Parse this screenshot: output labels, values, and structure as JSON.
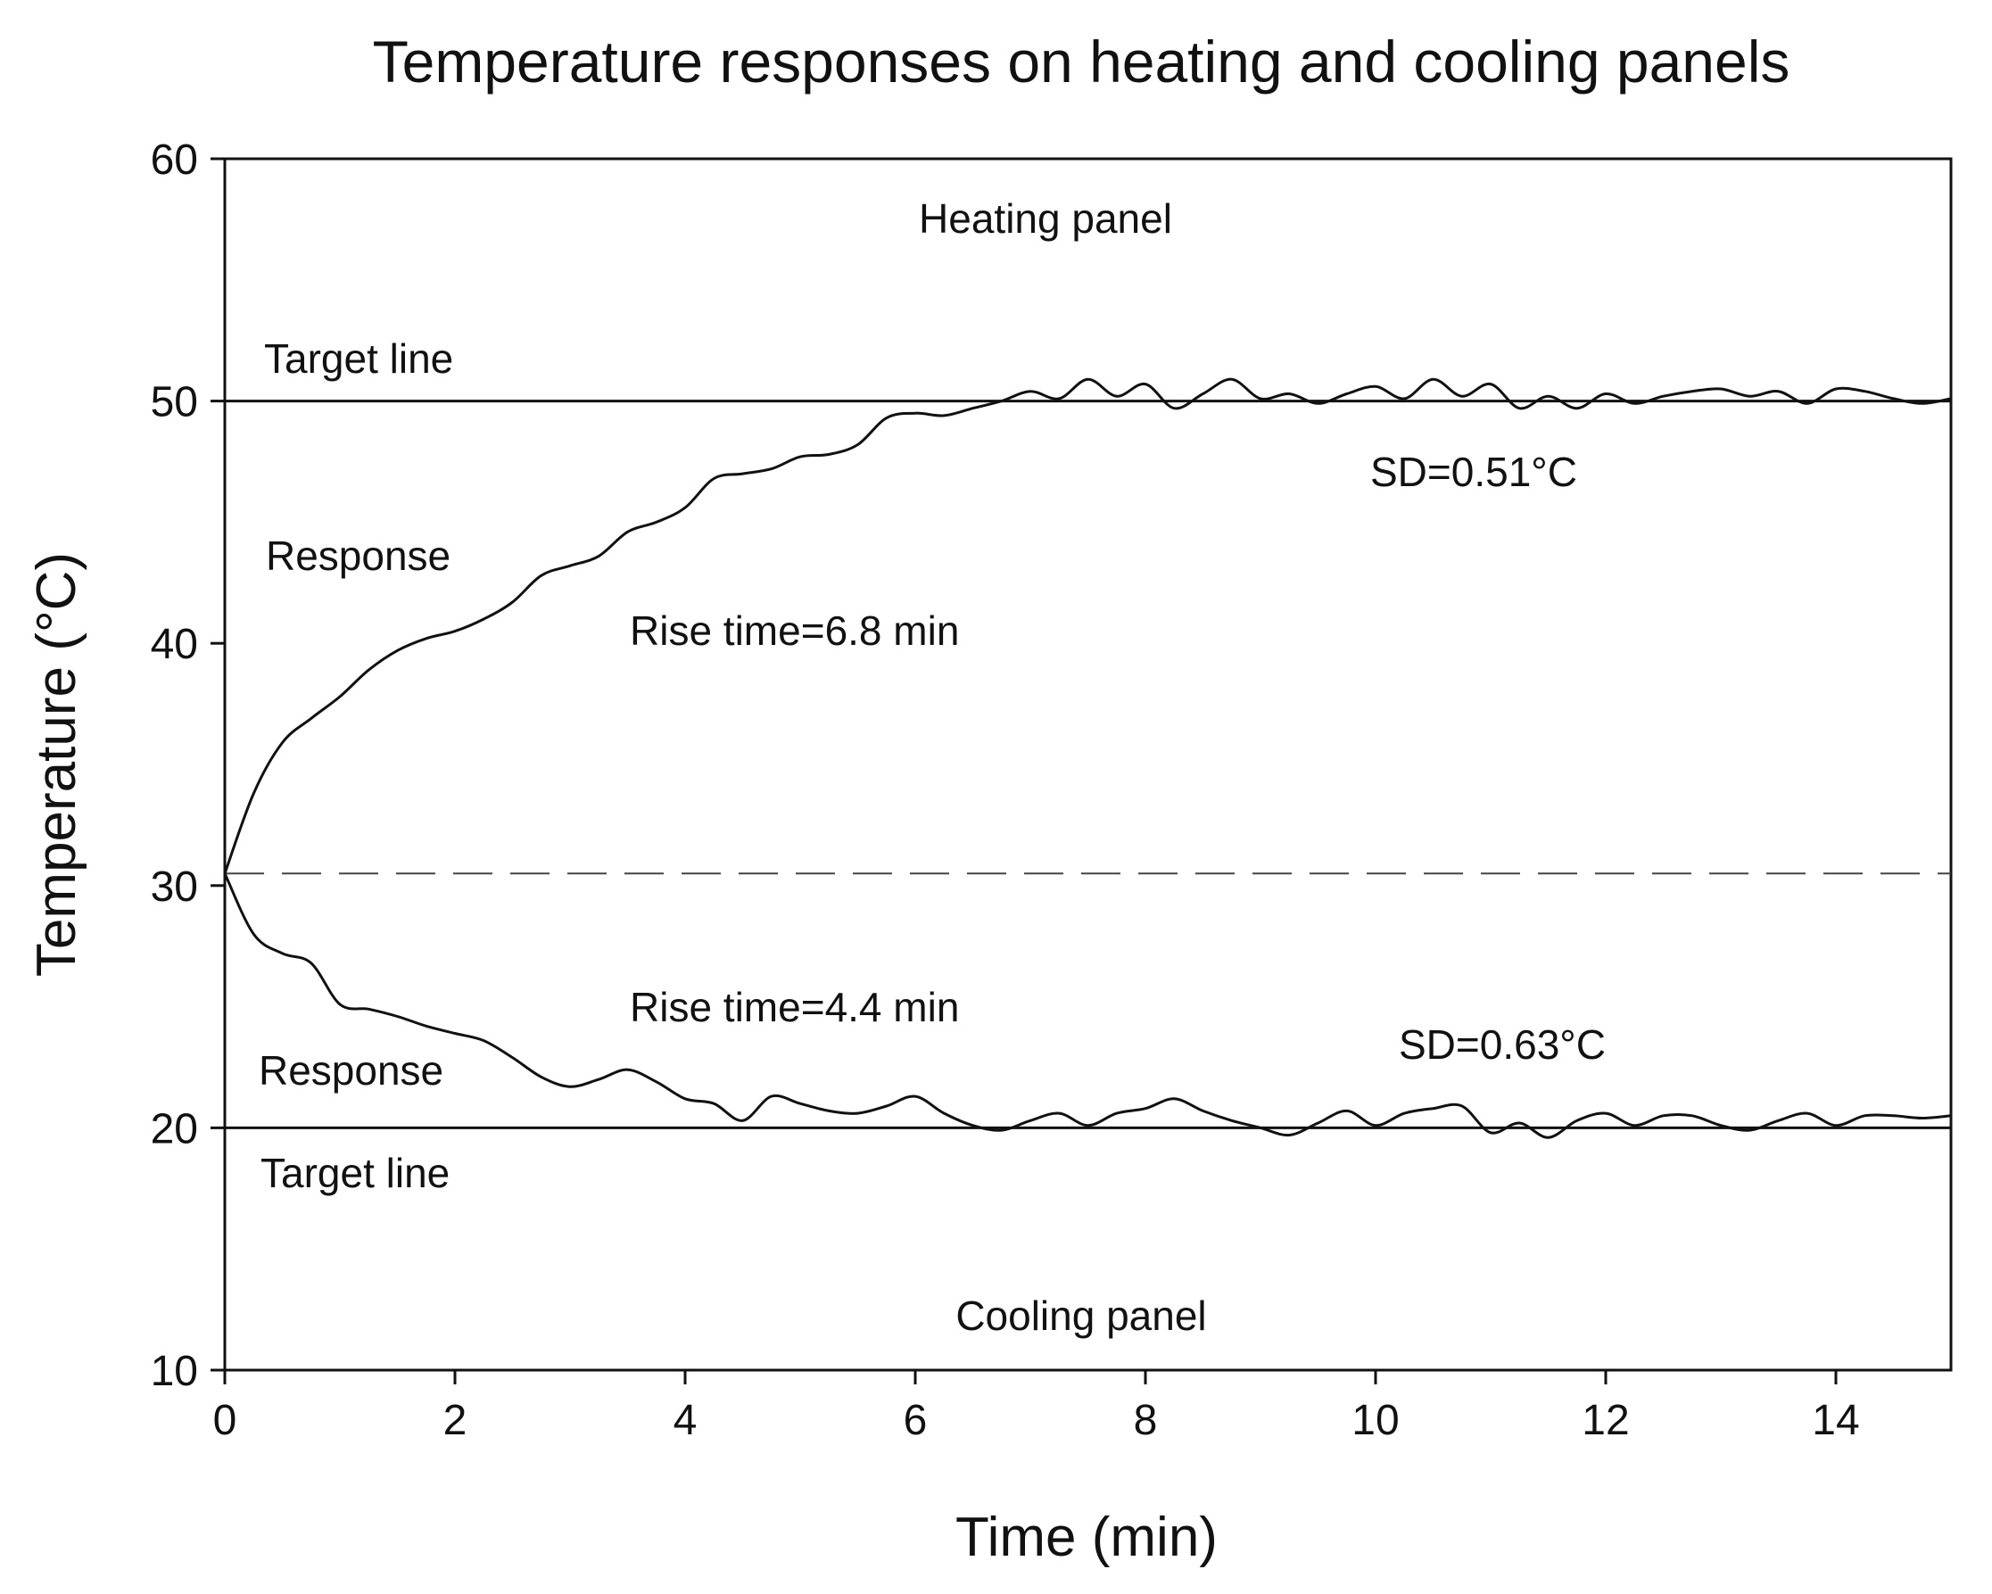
{
  "chart_data": {
    "type": "line",
    "title": "Temperature responses on heating and cooling panels",
    "xlabel": "Time (min)",
    "ylabel": "Temperature (°C)",
    "xlim": [
      0,
      15
    ],
    "ylim": [
      10,
      60
    ],
    "x_ticks": [
      0,
      2,
      4,
      6,
      8,
      10,
      12,
      14
    ],
    "y_ticks": [
      10,
      20,
      30,
      40,
      50,
      60
    ],
    "grid": false,
    "reference_lines": [
      {
        "name": "heating-target",
        "y": 50,
        "style": "solid",
        "label": "Target line"
      },
      {
        "name": "cooling-target",
        "y": 20,
        "style": "solid",
        "label": "Target line"
      },
      {
        "name": "initial-temperature",
        "y": 30.5,
        "style": "dashed",
        "label": ""
      }
    ],
    "series": [
      {
        "name": "Heating panel response",
        "x": [
          0,
          0.25,
          0.5,
          0.75,
          1.0,
          1.25,
          1.5,
          1.75,
          2.0,
          2.25,
          2.5,
          2.75,
          3.0,
          3.25,
          3.5,
          3.75,
          4.0,
          4.25,
          4.5,
          4.75,
          5.0,
          5.25,
          5.5,
          5.75,
          6.0,
          6.25,
          6.5,
          6.75,
          7.0,
          7.25,
          7.5,
          7.75,
          8.0,
          8.25,
          8.5,
          8.75,
          9.0,
          9.25,
          9.5,
          9.75,
          10.0,
          10.25,
          10.5,
          10.75,
          11.0,
          11.25,
          11.5,
          11.75,
          12.0,
          12.25,
          12.5,
          12.75,
          13.0,
          13.25,
          13.5,
          13.75,
          14.0,
          14.25,
          14.5,
          14.75,
          15.0
        ],
        "values": [
          30.5,
          33.8,
          35.9,
          36.9,
          37.8,
          38.9,
          39.7,
          40.2,
          40.5,
          41.0,
          41.7,
          42.8,
          43.2,
          43.6,
          44.6,
          45.0,
          45.6,
          46.8,
          47.0,
          47.2,
          47.7,
          47.8,
          48.2,
          49.3,
          49.5,
          49.4,
          49.7,
          50.0,
          50.4,
          50.1,
          50.9,
          50.2,
          50.7,
          49.7,
          50.3,
          50.9,
          50.1,
          50.3,
          49.9,
          50.3,
          50.6,
          50.1,
          50.9,
          50.2,
          50.7,
          49.7,
          50.2,
          49.7,
          50.3,
          49.9,
          50.2,
          50.4,
          50.5,
          50.2,
          50.4,
          49.9,
          50.5,
          50.4,
          50.1,
          49.9,
          50.1
        ],
        "label": "Response",
        "annotations": [
          "Heating panel",
          "Rise time=6.8 min",
          "SD=0.51°C"
        ]
      },
      {
        "name": "Cooling panel response",
        "x": [
          0,
          0.25,
          0.5,
          0.75,
          1.0,
          1.25,
          1.5,
          1.75,
          2.0,
          2.25,
          2.5,
          2.75,
          3.0,
          3.25,
          3.5,
          3.75,
          4.0,
          4.25,
          4.5,
          4.75,
          5.0,
          5.25,
          5.5,
          5.75,
          6.0,
          6.25,
          6.5,
          6.75,
          7.0,
          7.25,
          7.5,
          7.75,
          8.0,
          8.25,
          8.5,
          8.75,
          9.0,
          9.25,
          9.5,
          9.75,
          10.0,
          10.25,
          10.5,
          10.75,
          11.0,
          11.25,
          11.5,
          11.75,
          12.0,
          12.25,
          12.5,
          12.75,
          13.0,
          13.25,
          13.5,
          13.75,
          14.0,
          14.25,
          14.5,
          14.75,
          15.0
        ],
        "values": [
          30.5,
          28.0,
          27.2,
          26.8,
          25.1,
          24.9,
          24.6,
          24.2,
          23.9,
          23.6,
          22.9,
          22.1,
          21.7,
          22.0,
          22.4,
          21.9,
          21.2,
          21.0,
          20.3,
          21.3,
          21.0,
          20.7,
          20.6,
          20.9,
          21.3,
          20.6,
          20.1,
          19.9,
          20.3,
          20.6,
          20.1,
          20.6,
          20.8,
          21.2,
          20.7,
          20.3,
          20.0,
          19.7,
          20.2,
          20.7,
          20.1,
          20.6,
          20.8,
          20.9,
          19.8,
          20.2,
          19.6,
          20.3,
          20.6,
          20.1,
          20.5,
          20.5,
          20.1,
          19.9,
          20.3,
          20.6,
          20.1,
          20.5,
          20.5,
          20.4,
          20.5
        ],
        "label": "Response",
        "annotations": [
          "Cooling panel",
          "Rise time=4.4 min",
          "SD=0.63°C"
        ]
      }
    ],
    "text_annotations": {
      "heating_panel": "Heating panel",
      "heating_target": "Target line",
      "heating_response": "Response",
      "heating_rise_time": "Rise time=6.8 min",
      "heating_sd": "SD=0.51°C",
      "cooling_panel": "Cooling panel",
      "cooling_target": "Target line",
      "cooling_response": "Response",
      "cooling_rise_time": "Rise time=4.4 min",
      "cooling_sd": "SD=0.63°C"
    }
  }
}
